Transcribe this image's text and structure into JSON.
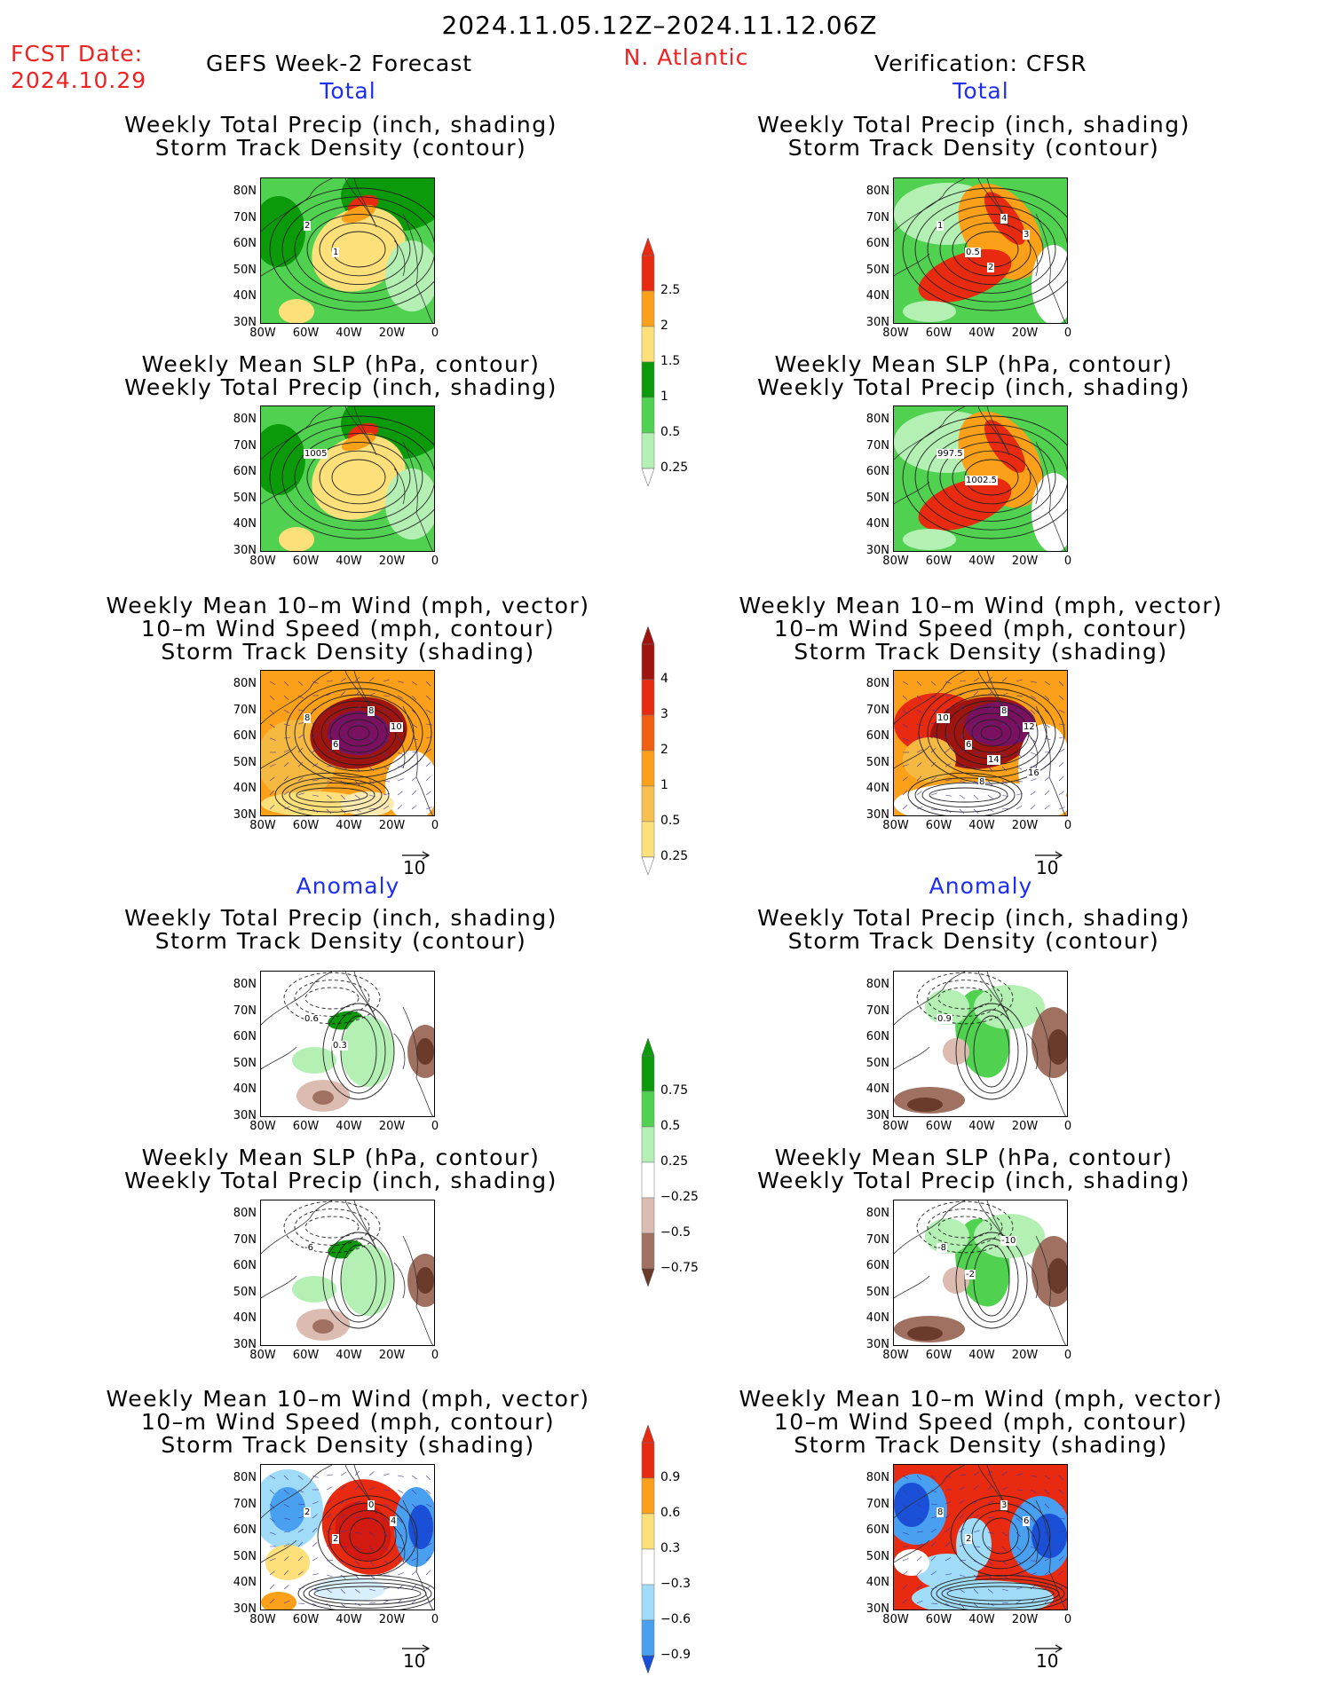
{
  "header": {
    "period": "2024.11.05.12Z–2024.11.12.06Z",
    "fcst_label": "FCST Date:",
    "fcst_date": "2024.10.29",
    "model": "GEFS Week-2 Forecast",
    "region": "N. Atlantic",
    "verification": "Verification: CFSR"
  },
  "sections": {
    "total_left": "Total",
    "total_right": "Total",
    "anomaly_left": "Anomaly",
    "anomaly_right": "Anomaly"
  },
  "titles": {
    "precip_track": [
      "Weekly Total Precip (inch, shading)",
      "Storm Track Density (contour)"
    ],
    "slp_precip": [
      "Weekly Mean SLP (hPa, contour)",
      "Weekly Total Precip (inch, shading)"
    ],
    "wind": [
      "Weekly Mean 10–m Wind (mph, vector)",
      "10–m Wind Speed (mph, contour)",
      "Storm Track Density (shading)"
    ]
  },
  "axes": {
    "lat_ticks": [
      "80N",
      "70N",
      "60N",
      "50N",
      "40N",
      "30N"
    ],
    "lon_ticks": [
      "80W",
      "60W",
      "40W",
      "20W",
      "0"
    ]
  },
  "vector_ref": "10",
  "colorbars": {
    "precip_total": [
      "2.5",
      "2",
      "1.5",
      "1",
      "0.5",
      "0.25"
    ],
    "track_total": [
      "4",
      "3",
      "2",
      "1",
      "0.5",
      "0.25"
    ],
    "precip_anom": [
      "0.75",
      "0.5",
      "0.25",
      "−0.25",
      "−0.5",
      "−0.75"
    ],
    "track_anom": [
      "0.9",
      "0.6",
      "0.3",
      "−0.3",
      "−0.6",
      "−0.9"
    ]
  },
  "contour_labels": {
    "p1_left": [
      "2",
      "1"
    ],
    "p1_right": [
      "1",
      "0.5",
      "4",
      "3",
      "2"
    ],
    "p2_left": [
      "1005"
    ],
    "p2_right": [
      "997.5",
      "1002.5"
    ],
    "p3_left": [
      "8",
      "6",
      "8",
      "10"
    ],
    "p3_right": [
      "10",
      "6",
      "8",
      "12",
      "14",
      "16",
      "8"
    ],
    "p4_left": [
      "0.6",
      "0.3"
    ],
    "p4_right": [
      "0.9"
    ],
    "p5_left": [
      "-6"
    ],
    "p5_right": [
      "-8",
      "-2",
      "-10"
    ],
    "p6_left": [
      "2",
      "2",
      "0",
      "4"
    ],
    "p6_right": [
      "8",
      "2",
      "3",
      "6"
    ]
  },
  "colors": {
    "green_light": "#b4f0b4",
    "green_mid": "#50d250",
    "green_dark": "#0a9a0a",
    "yellow": "#fde07a",
    "orange": "#fba018",
    "red": "#e82a10",
    "dark_red": "#a01410",
    "brown_light": "#dcbcb0",
    "brown_mid": "#a07060",
    "brown_dark": "#6a3a2a",
    "blue_light": "#a0dcf8",
    "blue_mid": "#4aa0f0",
    "blue_dark": "#1a50d8"
  }
}
